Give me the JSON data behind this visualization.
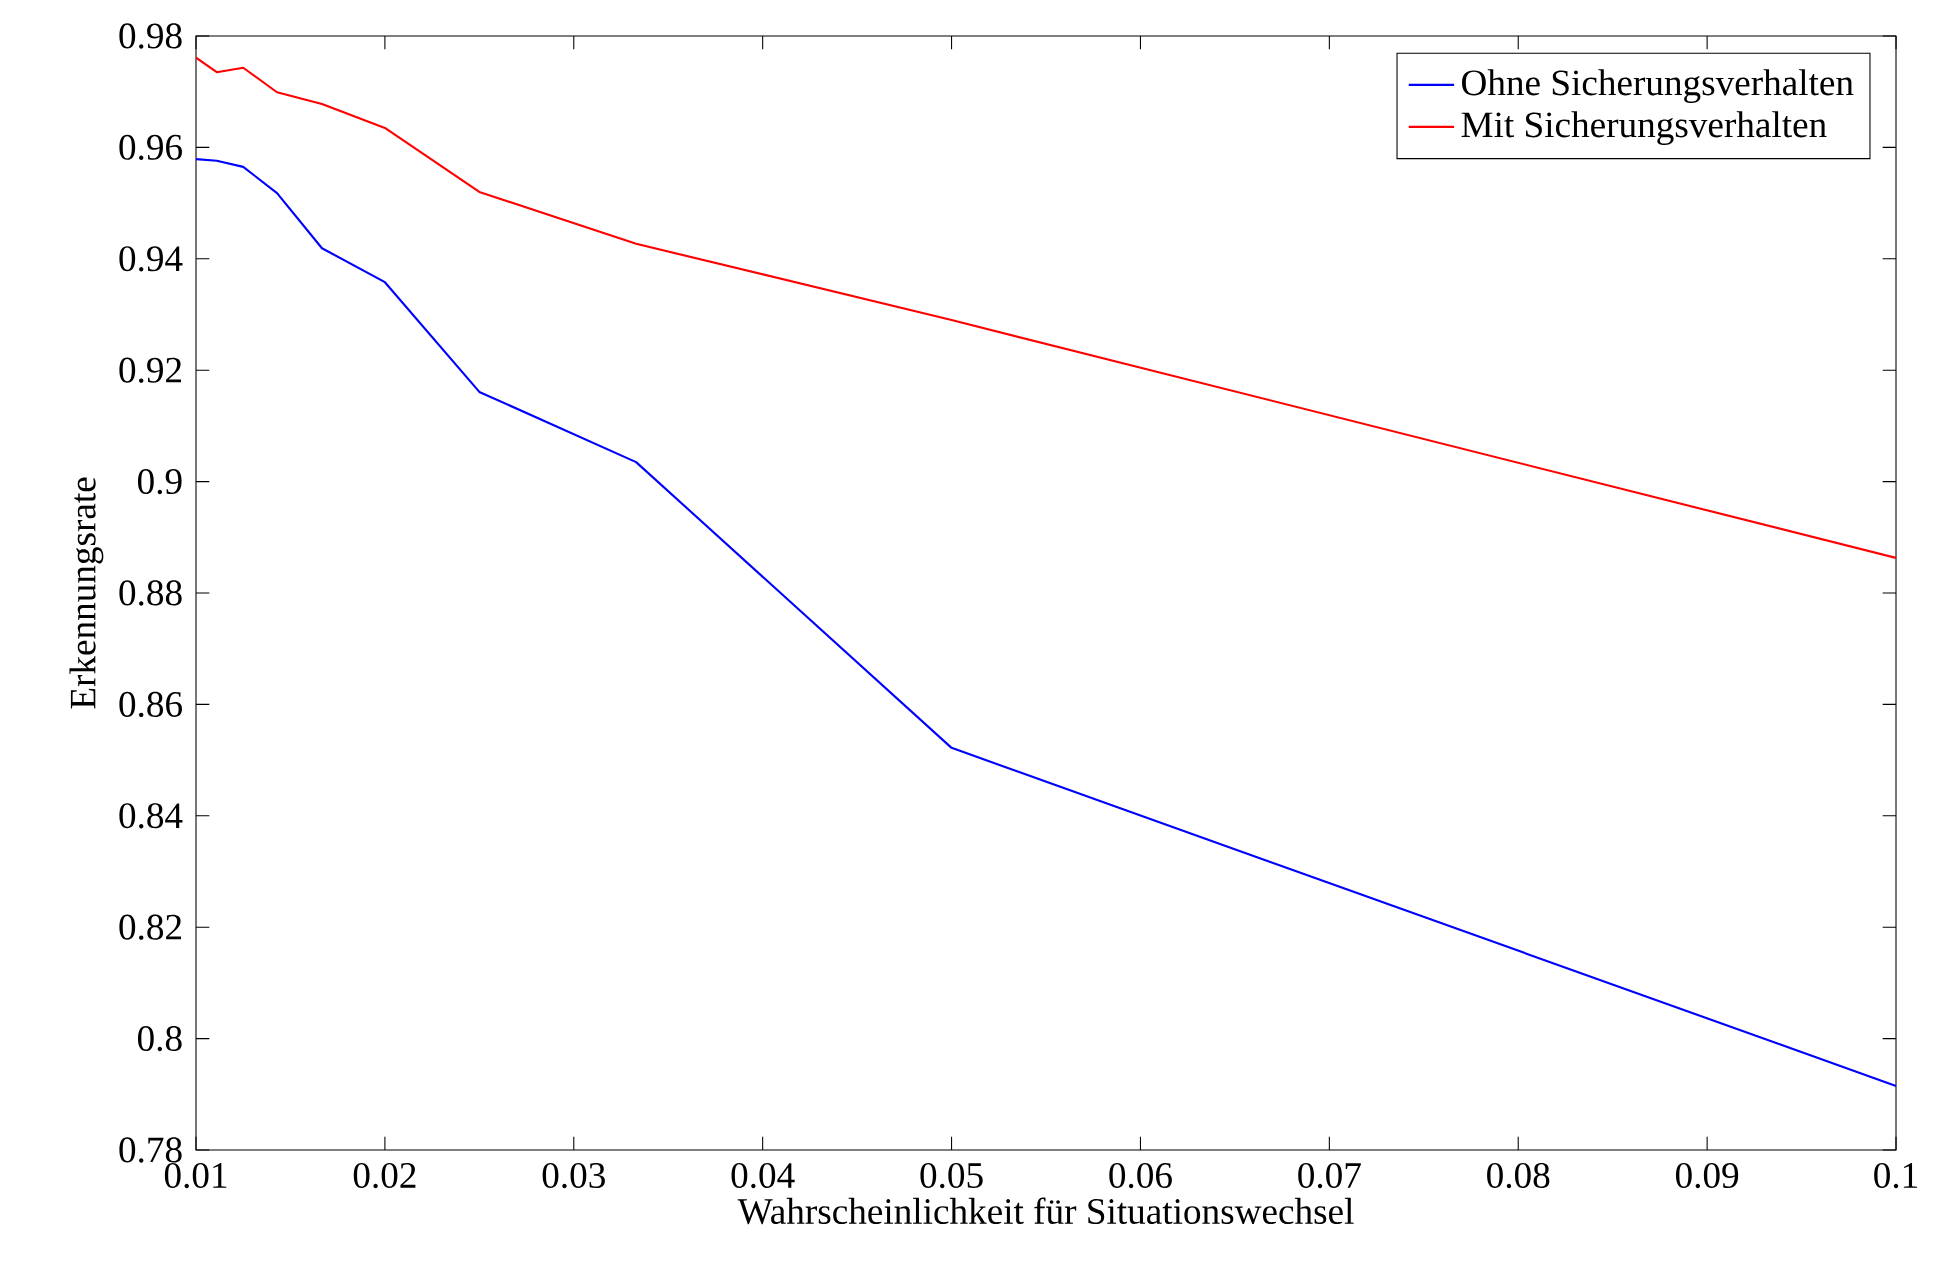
{
  "chart_data": {
    "type": "line",
    "xlabel": "Wahrscheinlichkeit für Situationswechsel",
    "ylabel": "Erkennungsrate",
    "x": [
      0.01,
      0.0111,
      0.0125,
      0.01429,
      0.01667,
      0.02,
      0.025,
      0.0333,
      0.05,
      0.1
    ],
    "series": [
      {
        "name": "Ohne Sicherungsverhalten",
        "color": "#0000ff",
        "values": [
          0.9579,
          0.9576,
          0.9565,
          0.9518,
          0.9419,
          0.9358,
          0.9161,
          0.9035,
          0.8522,
          0.7915
        ]
      },
      {
        "name": "Mit Sicherungsverhalten",
        "color": "#ff0000",
        "values": [
          0.9761,
          0.9735,
          0.9743,
          0.9699,
          0.9678,
          0.9635,
          0.952,
          0.9427,
          0.929,
          0.8863
        ]
      }
    ],
    "xlim": [
      0.01,
      0.1
    ],
    "ylim": [
      0.78,
      0.98
    ],
    "xticks": [
      0.01,
      0.02,
      0.03,
      0.04,
      0.05,
      0.06,
      0.07,
      0.08,
      0.09,
      0.1
    ],
    "yticks": [
      0.78,
      0.8,
      0.82,
      0.84,
      0.86,
      0.88,
      0.9,
      0.92,
      0.94,
      0.96,
      0.98
    ],
    "legend": "top right",
    "line_style": "solid",
    "grid": false
  }
}
